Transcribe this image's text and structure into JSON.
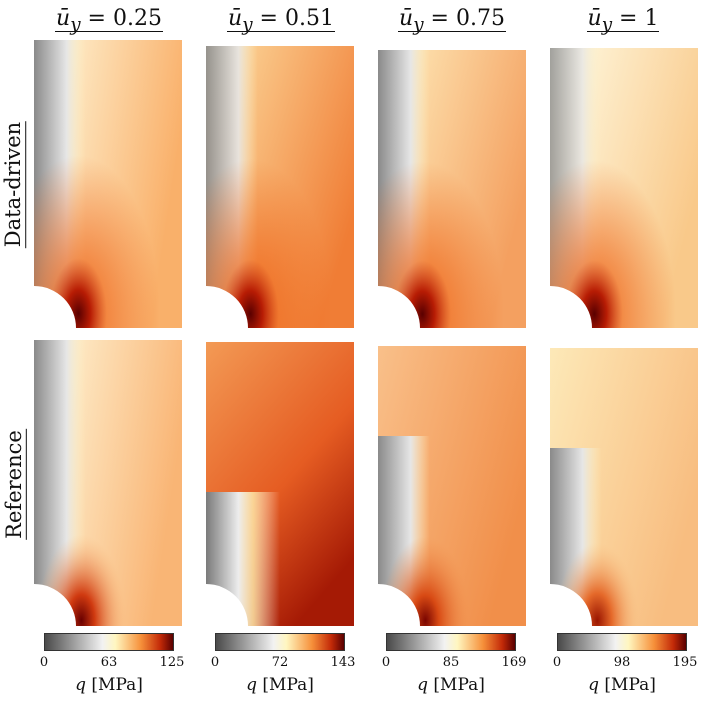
{
  "columns": [
    {
      "var": "ū",
      "sub": "y",
      "eq": " = 0.25",
      "ticks": [
        "0",
        "63",
        "125"
      ]
    },
    {
      "var": "ū",
      "sub": "y",
      "eq": " = 0.51",
      "ticks": [
        "0",
        "72",
        "143"
      ]
    },
    {
      "var": "ū",
      "sub": "y",
      "eq": " = 0.75",
      "ticks": [
        "0",
        "85",
        "169"
      ]
    },
    {
      "var": "ū",
      "sub": "y",
      "eq": " = 1",
      "ticks": [
        "0",
        "98",
        "195"
      ]
    }
  ],
  "rows": [
    "Data-driven",
    "Reference"
  ],
  "colorbar": {
    "symbol": "q",
    "unit": " [MPa]"
  },
  "colors": {
    "low": "#4a4a4a",
    "mid": "#fffbd0",
    "high": "#6a0000"
  }
}
